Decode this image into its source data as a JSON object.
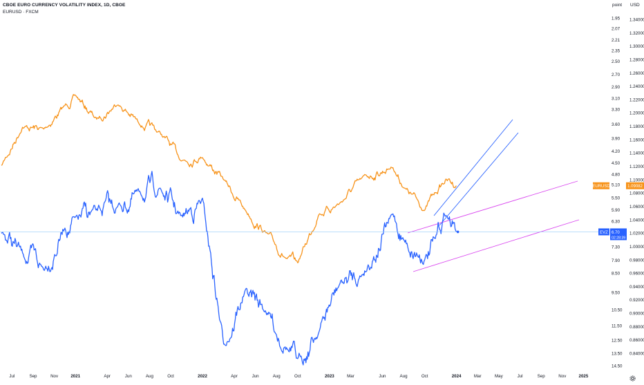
{
  "header": {
    "title": "CBOE EURO CURRENCY VOLATILITY INDEX, 1D, CBOE",
    "subtitle": "EURUSD · FXCM",
    "left_unit": "point",
    "right_unit": "USD"
  },
  "badges": {
    "eurusd_label": "EURUSD",
    "eurusd_value": "1.09082",
    "evz_label": "EVZ",
    "evz_value": "6.70",
    "evz_countdown": "02:28:39"
  },
  "colors": {
    "eurusd": "#F7931A",
    "evz": "#2962FF",
    "channel_blue": "#2962FF",
    "channel_purple": "#D946EF",
    "crosshair": "#90CAF9",
    "axis_text": "#131722"
  },
  "chart_data": {
    "type": "line",
    "x_axis": {
      "tick_labels": [
        "Jul",
        "Sep",
        "Nov",
        "2021",
        "Apr",
        "Jun",
        "Aug",
        "Oct",
        "2022",
        "Apr",
        "Jun",
        "Aug",
        "Oct",
        "2023",
        "Mar",
        "Jun",
        "Aug",
        "Oct",
        "2024",
        "Mar",
        "May",
        "Jul",
        "Sep",
        "Nov",
        "2025"
      ],
      "range": [
        "2020-06",
        "2025-01"
      ]
    },
    "left_axis": {
      "label": "point",
      "scale": "log-inverted",
      "tick_labels": [
        "1.95",
        "2.07",
        "2.21",
        "2.35",
        "2.50",
        "2.70",
        "2.90",
        "3.10",
        "3.30",
        "3.60",
        "3.90",
        "4.20",
        "4.50",
        "4.80",
        "5.10",
        "5.50",
        "5.90",
        "6.30",
        "7.30",
        "7.90",
        "8.50",
        "9.50",
        "10.50",
        "11.50",
        "12.50",
        "13.50",
        "14.50"
      ]
    },
    "right_axis": {
      "label": "USD",
      "tick_labels": [
        "1.34000",
        "1.32000",
        "1.30000",
        "1.28000",
        "1.26000",
        "1.24000",
        "1.22000",
        "1.20000",
        "1.18000",
        "1.16000",
        "1.14000",
        "1.12000",
        "1.10000",
        "1.08000",
        "1.06000",
        "1.04000",
        "1.02000",
        "1.00000",
        "0.98000",
        "0.96000",
        "0.94000",
        "0.92000",
        "0.90000",
        "0.88000",
        "0.86000",
        "0.84000"
      ]
    },
    "series": [
      {
        "name": "EURUSD",
        "axis": "right",
        "x": [
          "2020-06",
          "2020-08",
          "2020-10",
          "2020-12",
          "2021-01",
          "2021-03",
          "2021-05",
          "2021-07",
          "2021-09",
          "2021-11",
          "2022-01",
          "2022-03",
          "2022-05",
          "2022-07",
          "2022-09",
          "2022-10",
          "2022-12",
          "2023-02",
          "2023-04",
          "2023-07",
          "2023-08",
          "2023-10",
          "2023-11",
          "2023-12",
          "2024-01"
        ],
        "values": [
          1.12,
          1.18,
          1.175,
          1.21,
          1.225,
          1.19,
          1.215,
          1.185,
          1.17,
          1.13,
          1.135,
          1.1,
          1.055,
          1.02,
          0.98,
          0.975,
          1.05,
          1.065,
          1.1,
          1.12,
          1.09,
          1.055,
          1.08,
          1.1,
          1.0908
        ]
      },
      {
        "name": "EVZ",
        "axis": "left",
        "x": [
          "2020-06",
          "2020-08",
          "2020-10",
          "2020-12",
          "2021-01",
          "2021-03",
          "2021-05",
          "2021-07",
          "2021-09",
          "2021-11",
          "2022-01",
          "2022-03",
          "2022-05",
          "2022-07",
          "2022-09",
          "2022-10",
          "2022-12",
          "2023-02",
          "2023-04",
          "2023-07",
          "2023-08",
          "2023-10",
          "2023-11",
          "2023-12",
          "2024-01"
        ],
        "values": [
          6.7,
          7.6,
          8.3,
          6.5,
          6.3,
          6.0,
          5.8,
          5.4,
          5.2,
          6.2,
          5.6,
          12.8,
          9.5,
          10.5,
          13.0,
          14.2,
          11.8,
          9.0,
          8.6,
          6.1,
          7.0,
          7.8,
          7.1,
          6.0,
          6.7
        ]
      }
    ],
    "annotations": [
      {
        "type": "channel",
        "color": "blue",
        "from": "2023-10",
        "to": "2024-05"
      },
      {
        "type": "channel",
        "color": "purple",
        "from": "2023-08",
        "to": "2024-11"
      }
    ]
  }
}
